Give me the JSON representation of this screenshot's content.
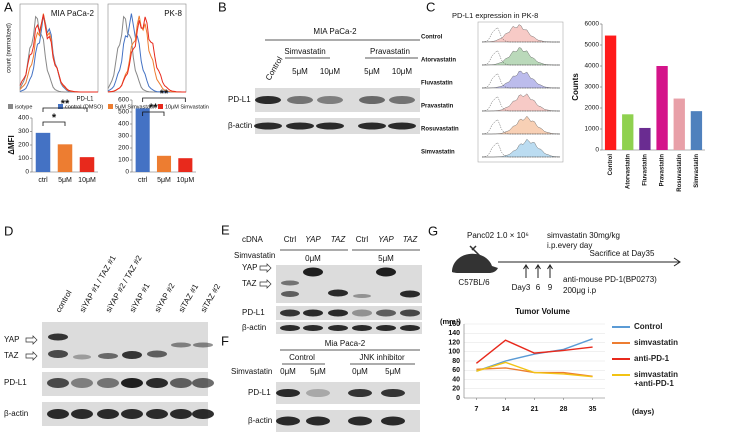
{
  "panel_a": {
    "letter": "A",
    "hist_titles": [
      "MIA PaCa-2",
      "PK-8"
    ],
    "hist_ylabel": "count (normalized)",
    "hist_xlabel": "PD-L1",
    "legend": [
      "isotype",
      "control (DMSO)",
      "5μM Simvastatin",
      "10μM Simvastatin"
    ],
    "legend_colors": [
      "#888888",
      "#4472c4",
      "#ed7d31",
      "#e8291c"
    ]
  },
  "panel_b": {
    "letter": "B",
    "cell_line": "MIA PaCa-2",
    "groups": [
      "Simvastatin",
      "Pravastatin"
    ],
    "lanes": [
      "Control",
      "5μM",
      "10μM",
      "5μM",
      "10μM"
    ],
    "rows": [
      "PD-L1",
      "β-actin"
    ]
  },
  "panel_c": {
    "letter": "C",
    "title": "PD-L1 expression in PK-8",
    "rows": [
      "Control",
      "Atorvastatin",
      "Fluvastatin",
      "Pravastatin",
      "Rosuvastatin",
      "Simvastatin"
    ]
  },
  "panel_d": {
    "letter": "D",
    "lanes": [
      "control",
      "siYAP #1 / TAZ #1",
      "siYAP #2 / TAZ #2",
      "siYAP #1",
      "siYAP #2",
      "siTAZ #1",
      "siTAZ #2"
    ],
    "rows": [
      "YAP",
      "TAZ",
      "PD-L1",
      "β-actin"
    ]
  },
  "panel_e": {
    "letter": "E",
    "cdna_label": "cDNA",
    "lanes": [
      "Ctrl",
      "YAP",
      "TAZ",
      "Ctrl",
      "YAP",
      "TAZ"
    ],
    "treatment_label": "Simvastatin",
    "doses": [
      "0μM",
      "5μM"
    ],
    "rows": [
      "YAP",
      "TAZ",
      "PD-L1",
      "β-actin"
    ]
  },
  "panel_f": {
    "letter": "F",
    "cell_line": "Mia Paca-2",
    "groups": [
      "Control",
      "JNK inhibitor"
    ],
    "treatment_label": "Simvastatin",
    "lanes": [
      "0μM",
      "5μM",
      "0μM",
      "5μM"
    ],
    "rows": [
      "PD-L1",
      "β-actin"
    ]
  },
  "panel_g": {
    "letter": "G",
    "cells": "Panc02 1.0 × 10⁶",
    "drug": "simvastatin 30mg/kg",
    "drug_schedule": "i.p.every day",
    "sacrifice": "Sacrifice at Day35",
    "mouse": "C57BL/6",
    "days": [
      "Day3",
      "6",
      "9"
    ],
    "antibody": "anti-mouse PD-1(BP0273)",
    "antibody_dose": "200μg  i.p"
  },
  "chart_data": [
    {
      "type": "bar",
      "ylabel": "ΔMFI",
      "categories": [
        "ctrl",
        "5μM",
        "10μM"
      ],
      "values": [
        290,
        205,
        110
      ],
      "colors": [
        "#4472c4",
        "#ed7d31",
        "#e8291c"
      ],
      "ylim": [
        0,
        400
      ],
      "yticks": [
        0,
        100,
        200,
        300,
        400
      ],
      "annotations": [
        "*",
        "**"
      ]
    },
    {
      "type": "bar",
      "categories": [
        "ctrl",
        "5μM",
        "10μM"
      ],
      "values": [
        530,
        135,
        115
      ],
      "colors": [
        "#4472c4",
        "#ed7d31",
        "#e8291c"
      ],
      "ylim": [
        0,
        600
      ],
      "yticks": [
        0,
        100,
        200,
        300,
        400,
        500,
        600
      ],
      "annotations": [
        "**",
        "**"
      ]
    },
    {
      "type": "bar",
      "ylabel": "Counts",
      "categories": [
        "Control",
        "Atorvastatin",
        "Fluvastatin",
        "Pravastatin",
        "Rosuvastatin",
        "Simvastatin"
      ],
      "values": [
        5450,
        1700,
        1050,
        4000,
        2450,
        1850
      ],
      "colors": [
        "#ff1a1a",
        "#8fd14f",
        "#6a2c91",
        "#d4148a",
        "#e8a0a8",
        "#4f81bd"
      ],
      "ylim": [
        0,
        6000
      ],
      "yticks": [
        0,
        1000,
        2000,
        3000,
        4000,
        5000,
        6000
      ]
    },
    {
      "type": "line",
      "title": "Tumor Volume",
      "ylabel": "(mm³)",
      "xlabel": "(days)",
      "x": [
        7,
        14,
        21,
        28,
        35
      ],
      "xlim": [
        4,
        38
      ],
      "xticks": [
        7,
        14,
        21,
        28,
        35
      ],
      "ylim": [
        0,
        160
      ],
      "yticks": [
        0,
        20,
        40,
        60,
        80,
        100,
        120,
        140,
        160
      ],
      "series": [
        {
          "name": "Control",
          "color": "#5b9bd5",
          "values": [
            58,
            80,
            95,
            105,
            128
          ]
        },
        {
          "name": "simvastatin",
          "color": "#ed7d31",
          "values": [
            62,
            65,
            55,
            55,
            47
          ]
        },
        {
          "name": "anti-PD-1",
          "color": "#e8291c",
          "values": [
            75,
            125,
            97,
            103,
            110
          ]
        },
        {
          "name": "simvastatin +anti-PD-1",
          "color": "#f2c314",
          "values": [
            58,
            77,
            55,
            52,
            46
          ]
        }
      ]
    }
  ]
}
